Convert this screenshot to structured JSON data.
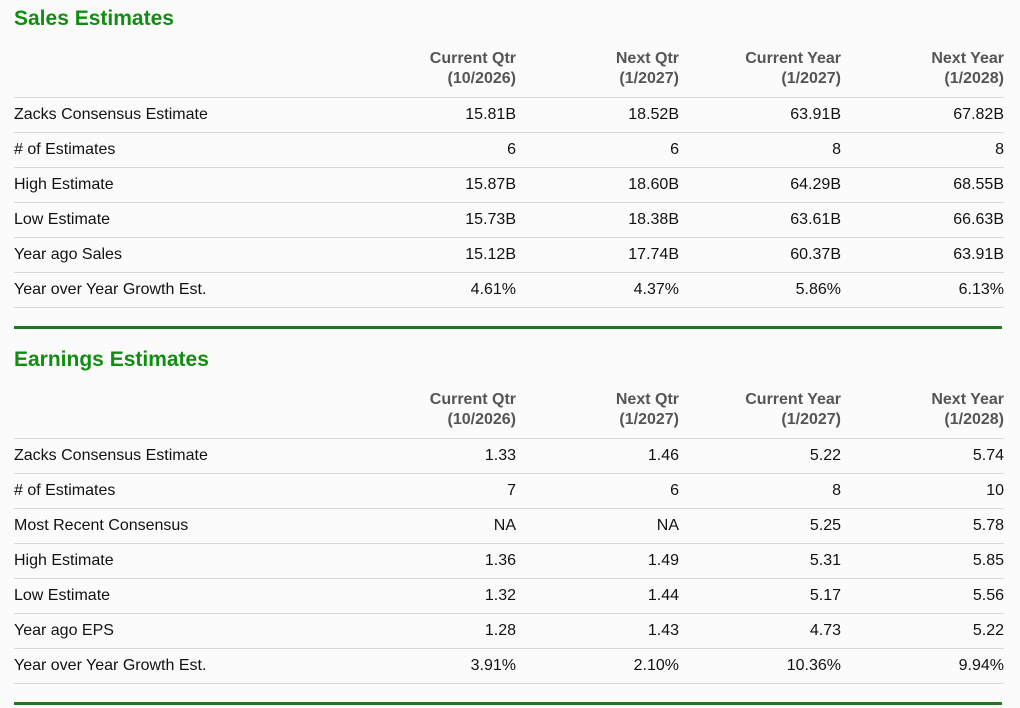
{
  "columns": [
    {
      "line1": "Current Qtr",
      "line2": "(10/2026)"
    },
    {
      "line1": "Next Qtr",
      "line2": "(1/2027)"
    },
    {
      "line1": "Current Year",
      "line2": "(1/2027)"
    },
    {
      "line1": "Next Year",
      "line2": "(1/2028)"
    }
  ],
  "sales": {
    "title": "Sales Estimates",
    "rows": [
      {
        "label": "Zacks Consensus Estimate",
        "values": [
          "15.81B",
          "18.52B",
          "63.91B",
          "67.82B"
        ]
      },
      {
        "label": "# of Estimates",
        "values": [
          "6",
          "6",
          "8",
          "8"
        ]
      },
      {
        "label": "High Estimate",
        "values": [
          "15.87B",
          "18.60B",
          "64.29B",
          "68.55B"
        ]
      },
      {
        "label": "Low Estimate",
        "values": [
          "15.73B",
          "18.38B",
          "63.61B",
          "66.63B"
        ]
      },
      {
        "label": "Year ago Sales",
        "values": [
          "15.12B",
          "17.74B",
          "60.37B",
          "63.91B"
        ]
      },
      {
        "label": "Year over Year Growth Est.",
        "values": [
          "4.61%",
          "4.37%",
          "5.86%",
          "6.13%"
        ]
      }
    ]
  },
  "earnings": {
    "title": "Earnings Estimates",
    "rows": [
      {
        "label": "Zacks Consensus Estimate",
        "values": [
          "1.33",
          "1.46",
          "5.22",
          "5.74"
        ]
      },
      {
        "label": "# of Estimates",
        "values": [
          "7",
          "6",
          "8",
          "10"
        ]
      },
      {
        "label": "Most Recent Consensus",
        "values": [
          "NA",
          "NA",
          "5.25",
          "5.78"
        ]
      },
      {
        "label": "High Estimate",
        "values": [
          "1.36",
          "1.49",
          "5.31",
          "5.85"
        ]
      },
      {
        "label": "Low Estimate",
        "values": [
          "1.32",
          "1.44",
          "5.17",
          "5.56"
        ]
      },
      {
        "label": "Year ago EPS",
        "values": [
          "1.28",
          "1.43",
          "4.73",
          "5.22"
        ]
      },
      {
        "label": "Year over Year Growth Est.",
        "values": [
          "3.91%",
          "2.10%",
          "10.36%",
          "9.94%"
        ]
      }
    ]
  },
  "colors": {
    "title": "#118d11",
    "divider": "#1f7a1f",
    "header_text": "#555555",
    "row_border": "#d9d9d9"
  }
}
